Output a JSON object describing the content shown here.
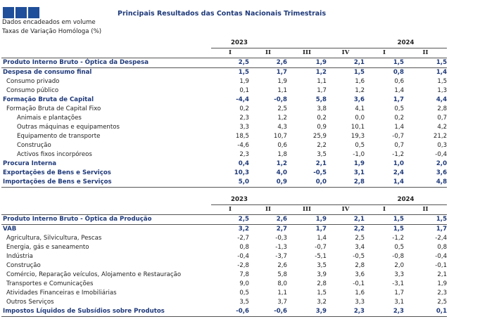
{
  "title": "Principais Resultados das Contas Nacionais Trimestrais",
  "subtitle_lines": [
    "Dados encadeados em volume",
    "Taxas de Variação Homóloga (%)"
  ],
  "years": [
    "2023",
    "2024"
  ],
  "quarters": [
    "I",
    "II",
    "III",
    "IV",
    "I",
    "II"
  ],
  "table1": {
    "rows": [
      {
        "label": "Produto Interno Bruto - Óptica da Despesa",
        "values": [
          "2,5",
          "2,6",
          "1,9",
          "2,1",
          "1,5",
          "1,5"
        ]
      },
      {
        "label": "Despesa de consumo final",
        "values": [
          "1,5",
          "1,7",
          "1,2",
          "1,5",
          "0,8",
          "1,4"
        ]
      },
      {
        "label": "Consumo privado",
        "values": [
          "1,9",
          "1,9",
          "1,1",
          "1,6",
          "0,6",
          "1,5"
        ]
      },
      {
        "label": "Consumo público",
        "values": [
          "0,1",
          "1,1",
          "1,7",
          "1,2",
          "1,4",
          "1,3"
        ]
      },
      {
        "label": "Formação Bruta de Capital",
        "values": [
          "-4,4",
          "-0,8",
          "5,8",
          "3,6",
          "1,7",
          "4,4"
        ]
      },
      {
        "label": "Formação Bruta de Capital Fixo",
        "values": [
          "0,2",
          "2,5",
          "3,8",
          "4,1",
          "0,5",
          "2,8"
        ]
      },
      {
        "label": "Animais e plantações",
        "values": [
          "2,3",
          "1,2",
          "0,2",
          "0,0",
          "0,2",
          "0,7"
        ]
      },
      {
        "label": "Outras máquinas e equipamentos",
        "values": [
          "3,3",
          "4,3",
          "0,9",
          "10,1",
          "1,4",
          "4,2"
        ]
      },
      {
        "label": "Equipamento de transporte",
        "values": [
          "18,5",
          "10,7",
          "25,9",
          "19,3",
          "-0,7",
          "21,2"
        ]
      },
      {
        "label": "Construção",
        "values": [
          "-4,6",
          "0,6",
          "2,2",
          "0,5",
          "0,7",
          "0,3"
        ]
      },
      {
        "label": "Activos fixos incorpóreos",
        "values": [
          "2,3",
          "1,8",
          "3,5",
          "-1,0",
          "-1,2",
          "-0,4"
        ]
      },
      {
        "label": "Procura Interna",
        "values": [
          "0,4",
          "1,2",
          "2,1",
          "1,9",
          "1,0",
          "2,0"
        ]
      },
      {
        "label": "Exportações de Bens e Serviços",
        "values": [
          "10,3",
          "4,0",
          "-0,5",
          "3,1",
          "2,4",
          "3,6"
        ]
      },
      {
        "label": "Importações de Bens e Serviços",
        "values": [
          "5,0",
          "0,9",
          "0,0",
          "2,8",
          "1,4",
          "4,8"
        ]
      }
    ]
  },
  "table2": {
    "rows": [
      {
        "label": "Produto Interno Bruto - Óptica da Produção",
        "values": [
          "2,5",
          "2,6",
          "1,9",
          "2,1",
          "1,5",
          "1,5"
        ]
      },
      {
        "label": "VAB",
        "values": [
          "3,2",
          "2,7",
          "1,7",
          "2,2",
          "1,5",
          "1,7"
        ]
      },
      {
        "label": "Agricultura, Silvicultura, Pescas",
        "values": [
          "-2,7",
          "-0,3",
          "1,4",
          "2,5",
          "-1,2",
          "-2,4"
        ]
      },
      {
        "label": "Energia, gás e saneamento",
        "values": [
          "0,8",
          "-1,3",
          "-0,7",
          "3,4",
          "0,5",
          "0,8"
        ]
      },
      {
        "label": "Indústria",
        "values": [
          "-0,4",
          "-3,7",
          "-5,1",
          "-0,5",
          "-0,8",
          "-0,4"
        ]
      },
      {
        "label": "Construção",
        "values": [
          "-2,8",
          "2,6",
          "3,5",
          "2,8",
          "2,0",
          "-0,1"
        ]
      },
      {
        "label": "Comércio, Reparação veículos, Alojamento e Restauração",
        "values": [
          "7,8",
          "5,8",
          "3,9",
          "3,6",
          "3,3",
          "2,1"
        ]
      },
      {
        "label": "Transportes e Comunicações",
        "values": [
          "9,0",
          "8,0",
          "2,8",
          "-0,1",
          "-3,1",
          "1,9"
        ]
      },
      {
        "label": "Atividades Financeiras e Imobiliárias",
        "values": [
          "0,5",
          "1,1",
          "1,5",
          "1,6",
          "1,7",
          "2,3"
        ]
      },
      {
        "label": "Outros Serviços",
        "values": [
          "3,5",
          "3,7",
          "3,2",
          "3,3",
          "3,1",
          "2,5"
        ]
      },
      {
        "label": "Impostos Líquidos de Subsídios sobre Produtos",
        "values": [
          "-0,6",
          "-0,6",
          "3,9",
          "2,3",
          "2,3",
          "0,1"
        ]
      }
    ]
  },
  "colors": {
    "logo": "#1f4f9a",
    "emphasis_text": "#1f3a7a"
  }
}
